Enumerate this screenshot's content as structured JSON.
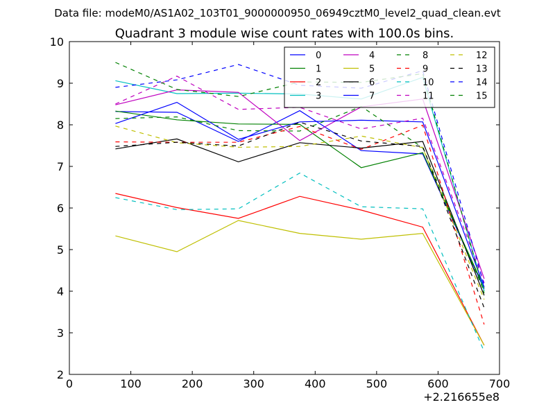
{
  "chart_data": {
    "type": "line",
    "suptitle": "Data file: modeM0/AS1A02_103T01_9000000950_06949cztM0_level2_quad_clean.evt",
    "title": "Quadrant 3 module wise count rates with 100.0s bins.",
    "xlabel": "",
    "ylabel": "",
    "x_offset_label": "+2.216655e8",
    "xlim": [
      0,
      700
    ],
    "ylim": [
      2,
      10
    ],
    "xticks": [
      0,
      100,
      200,
      300,
      400,
      500,
      600,
      700
    ],
    "yticks": [
      2,
      3,
      4,
      5,
      6,
      7,
      8,
      9,
      10
    ],
    "x": [
      75,
      175,
      275,
      375,
      475,
      575,
      675
    ],
    "legend_location": "upper-right",
    "legend_columns": 4,
    "series": [
      {
        "name": "0",
        "color": "#0000ff",
        "dashed": false,
        "values": [
          8.32,
          8.3,
          7.6,
          8.34,
          7.38,
          7.3,
          4.05
        ]
      },
      {
        "name": "1",
        "color": "#008000",
        "dashed": false,
        "values": [
          8.33,
          8.12,
          8.02,
          8.01,
          6.97,
          7.33,
          4.08
        ]
      },
      {
        "name": "2",
        "color": "#ff0000",
        "dashed": false,
        "values": [
          6.35,
          6.01,
          5.75,
          6.28,
          5.95,
          5.54,
          2.7
        ]
      },
      {
        "name": "3",
        "color": "#00bfbf",
        "dashed": false,
        "values": [
          9.06,
          8.75,
          8.76,
          8.74,
          8.62,
          9.14,
          4.0
        ]
      },
      {
        "name": "4",
        "color": "#bf00bf",
        "dashed": false,
        "values": [
          8.48,
          8.84,
          8.78,
          7.62,
          8.43,
          8.62,
          4.3
        ]
      },
      {
        "name": "5",
        "color": "#bfbf00",
        "dashed": false,
        "values": [
          5.33,
          4.95,
          5.7,
          5.39,
          5.25,
          5.39,
          2.7
        ]
      },
      {
        "name": "6",
        "color": "#000000",
        "dashed": false,
        "values": [
          7.42,
          7.66,
          7.11,
          7.57,
          7.44,
          7.6,
          3.9
        ]
      },
      {
        "name": "7",
        "color": "#0000ff",
        "dashed": false,
        "values": [
          8.03,
          8.54,
          7.65,
          8.07,
          8.11,
          8.07,
          4.1
        ]
      },
      {
        "name": "8",
        "color": "#008000",
        "dashed": true,
        "values": [
          8.15,
          8.19,
          7.86,
          7.85,
          8.44,
          7.45,
          4.0
        ]
      },
      {
        "name": "9",
        "color": "#ff0000",
        "dashed": true,
        "values": [
          7.59,
          7.58,
          7.58,
          7.96,
          7.41,
          7.99,
          3.2
        ]
      },
      {
        "name": "10",
        "color": "#00bfbf",
        "dashed": true,
        "values": [
          6.25,
          5.96,
          5.98,
          6.84,
          6.03,
          5.98,
          2.55
        ]
      },
      {
        "name": "11",
        "color": "#bf00bf",
        "dashed": true,
        "values": [
          8.5,
          9.17,
          8.37,
          8.42,
          7.9,
          8.16,
          4.2
        ]
      },
      {
        "name": "12",
        "color": "#bfbf00",
        "dashed": true,
        "values": [
          7.97,
          7.57,
          7.46,
          7.48,
          7.73,
          7.45,
          3.8
        ]
      },
      {
        "name": "13",
        "color": "#000000",
        "dashed": true,
        "values": [
          7.48,
          7.58,
          7.49,
          8.06,
          7.61,
          7.48,
          3.6
        ]
      },
      {
        "name": "14",
        "color": "#0000ff",
        "dashed": true,
        "values": [
          8.9,
          9.08,
          9.45,
          8.95,
          8.88,
          9.3,
          4.15
        ]
      },
      {
        "name": "15",
        "color": "#008000",
        "dashed": true,
        "values": [
          9.5,
          8.85,
          8.68,
          9.03,
          9.02,
          9.23,
          3.95
        ]
      }
    ]
  }
}
